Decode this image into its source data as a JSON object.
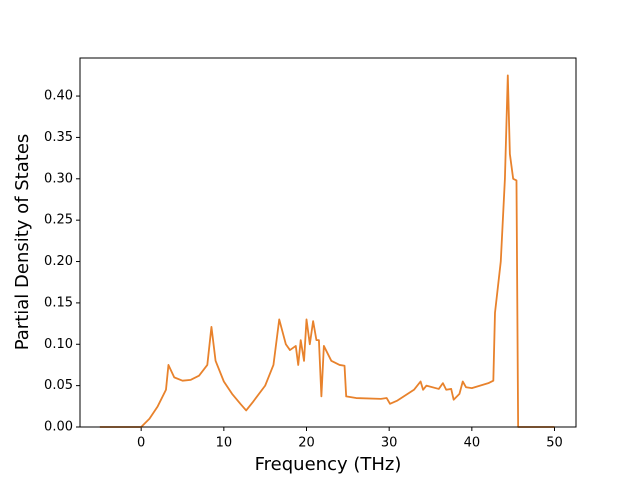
{
  "chart_data": {
    "type": "line",
    "xlabel": "Frequency (THz)",
    "ylabel": "Partial Density of States",
    "xlim": [
      -7.4,
      52.6
    ],
    "ylim": [
      0,
      0.446
    ],
    "xticks": [
      0,
      10,
      20,
      30,
      40,
      50
    ],
    "yticks": [
      {
        "value": 0,
        "label": "0.00"
      },
      {
        "value": 0.05,
        "label": "0.05"
      },
      {
        "value": 0.1,
        "label": "0.10"
      },
      {
        "value": 0.15,
        "label": "0.15"
      },
      {
        "value": 0.2,
        "label": "0.20"
      },
      {
        "value": 0.25,
        "label": "0.25"
      },
      {
        "value": 0.3,
        "label": "0.30"
      },
      {
        "value": 0.35,
        "label": "0.35"
      },
      {
        "value": 0.4,
        "label": "0.40"
      }
    ],
    "series": [
      {
        "color": "#e8822c",
        "x": [
          -5,
          0,
          1,
          2,
          3,
          3.3,
          4,
          5,
          6,
          7,
          8,
          8.5,
          9,
          10,
          11,
          12,
          12.7,
          13.5,
          15,
          16,
          16.7,
          17.5,
          18,
          18.7,
          19,
          19.3,
          19.7,
          20,
          20.4,
          20.8,
          21.2,
          21.5,
          21.8,
          22.1,
          23,
          24,
          24.6,
          24.8,
          26,
          29,
          29.7,
          30.1,
          31,
          33,
          33.8,
          34.1,
          34.5,
          36,
          36.5,
          36.9,
          37.5,
          37.8,
          38.5,
          38.9,
          39.3,
          40,
          41,
          42,
          42.6,
          42.8,
          43.5,
          44,
          44.35,
          44.6,
          45,
          45.4,
          45.6,
          50
        ],
        "values": [
          0,
          0,
          0.01,
          0.025,
          0.045,
          0.075,
          0.06,
          0.056,
          0.057,
          0.062,
          0.075,
          0.121,
          0.08,
          0.055,
          0.04,
          0.028,
          0.02,
          0.03,
          0.05,
          0.075,
          0.13,
          0.1,
          0.093,
          0.098,
          0.075,
          0.105,
          0.08,
          0.13,
          0.1,
          0.128,
          0.105,
          0.105,
          0.037,
          0.098,
          0.08,
          0.075,
          0.074,
          0.037,
          0.035,
          0.034,
          0.035,
          0.028,
          0.032,
          0.045,
          0.055,
          0.045,
          0.05,
          0.046,
          0.053,
          0.045,
          0.046,
          0.033,
          0.04,
          0.055,
          0.048,
          0.047,
          0.05,
          0.053,
          0.056,
          0.138,
          0.2,
          0.3,
          0.425,
          0.33,
          0.3,
          0.298,
          0,
          0
        ]
      }
    ]
  }
}
